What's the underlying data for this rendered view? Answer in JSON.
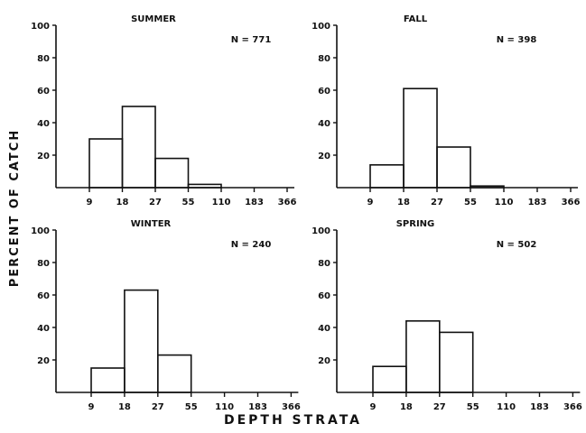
{
  "figure": {
    "ylabel": "PERCENT OF CATCH",
    "xlabel": "DEPTH STRATA"
  },
  "chart_data": [
    {
      "type": "bar",
      "title": "SUMMER",
      "annotation": "N = 771",
      "categories": [
        "9-18",
        "18-27",
        "27-55",
        "55-110",
        "110-183",
        "183-366"
      ],
      "values": [
        30,
        50,
        18,
        2,
        0,
        0
      ],
      "xticks": [
        "9",
        "18",
        "27",
        "55",
        "110",
        "183",
        "366"
      ],
      "yticks": [
        "20",
        "40",
        "60",
        "80",
        "100"
      ],
      "ylim": [
        0,
        100
      ]
    },
    {
      "type": "bar",
      "title": "FALL",
      "annotation": "N = 398",
      "categories": [
        "9-18",
        "18-27",
        "27-55",
        "55-110",
        "110-183",
        "183-366"
      ],
      "values": [
        14,
        61,
        25,
        1,
        0,
        0
      ],
      "xticks": [
        "9",
        "18",
        "27",
        "55",
        "110",
        "183",
        "366"
      ],
      "yticks": [
        "20",
        "40",
        "60",
        "80",
        "100"
      ],
      "ylim": [
        0,
        100
      ]
    },
    {
      "type": "bar",
      "title": "WINTER",
      "annotation": "N = 240",
      "categories": [
        "9-18",
        "18-27",
        "27-55",
        "55-110",
        "110-183",
        "183-366"
      ],
      "values": [
        15,
        63,
        23,
        0,
        0,
        0
      ],
      "xticks": [
        "9",
        "18",
        "27",
        "55",
        "110",
        "183",
        "366"
      ],
      "yticks": [
        "20",
        "40",
        "60",
        "80",
        "100"
      ],
      "ylim": [
        0,
        100
      ]
    },
    {
      "type": "bar",
      "title": "SPRING",
      "annotation": "N = 502",
      "categories": [
        "9-18",
        "18-27",
        "27-55",
        "55-110",
        "110-183",
        "183-366"
      ],
      "values": [
        16,
        44,
        37,
        0,
        0,
        0
      ],
      "xticks": [
        "9",
        "18",
        "27",
        "55",
        "110",
        "183",
        "366"
      ],
      "yticks": [
        "20",
        "40",
        "60",
        "80",
        "100"
      ],
      "ylim": [
        0,
        100
      ]
    }
  ]
}
